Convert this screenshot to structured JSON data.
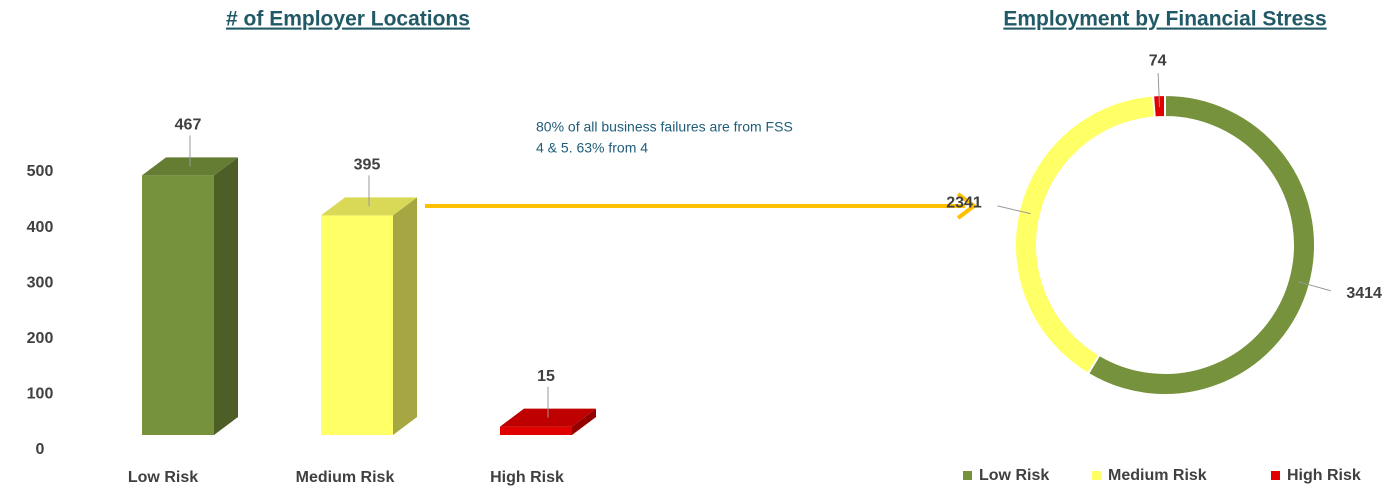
{
  "chart_data": [
    {
      "type": "bar3d",
      "title": "# of Employer Locations",
      "categories": [
        "Low Risk",
        "Medium Risk",
        "High Risk"
      ],
      "values": [
        467,
        395,
        15
      ],
      "colors": [
        "#77923c",
        "#ffff66",
        "#e00000"
      ],
      "ylim": [
        0,
        500
      ],
      "yticks": [
        0,
        100,
        200,
        300,
        400,
        500
      ],
      "annotation": [
        "80% of all business failures are from FSS",
        "4 & 5.   63% from 4"
      ]
    },
    {
      "type": "donut",
      "title": "Employment by Financial Stress",
      "categories": [
        "Low Risk",
        "Medium Risk",
        "High Risk"
      ],
      "values": [
        3414,
        2341,
        74
      ],
      "colors": [
        "#77923c",
        "#ffff66",
        "#e00000"
      ],
      "legend": "bottom"
    }
  ]
}
